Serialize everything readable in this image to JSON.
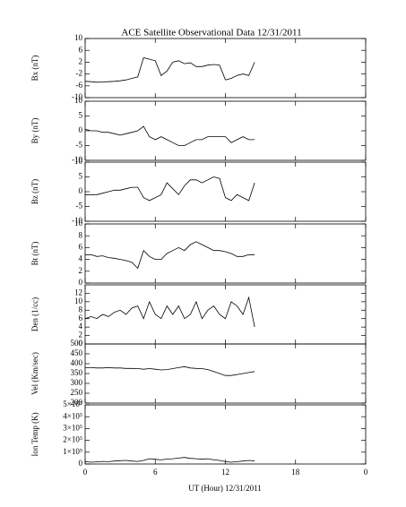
{
  "title": "ACE Satellite Observational Data   12/31/2011",
  "x_label": "UT (Hour)  12/31/2011",
  "xlim": [
    0,
    24
  ],
  "xticks": [
    0,
    6,
    12,
    18,
    {
      "value": 24,
      "label": "0"
    }
  ],
  "x": [
    0,
    0.5,
    1,
    1.5,
    2,
    2.5,
    3,
    3.5,
    4,
    4.5,
    5,
    5.5,
    6,
    6.5,
    7,
    7.5,
    8,
    8.5,
    9,
    9.5,
    10,
    10.5,
    11,
    11.5,
    12,
    12.5,
    13,
    13.5,
    14,
    14.5
  ],
  "chart_data": [
    {
      "type": "line",
      "y_label": "Bx (nT)",
      "ylim": [
        -10,
        10
      ],
      "yticks": [
        -10,
        -6,
        -2,
        2,
        6,
        10
      ],
      "values": [
        -4.5,
        -4.6,
        -4.8,
        -4.7,
        -4.6,
        -4.5,
        -4.3,
        -4.0,
        -3.5,
        -3.0,
        3.5,
        3.0,
        2.5,
        -2.5,
        -1.0,
        2.0,
        2.5,
        1.5,
        1.8,
        0.5,
        0.5,
        1.0,
        1.2,
        1.0,
        -4.0,
        -3.5,
        -2.5,
        -2.0,
        -2.5,
        2.0
      ]
    },
    {
      "type": "line",
      "y_label": "By (nT)",
      "ylim": [
        -10,
        10
      ],
      "yticks": [
        -10,
        -5,
        0,
        5,
        10
      ],
      "values": [
        0.5,
        0,
        0,
        -0.5,
        -0.5,
        -1,
        -1.5,
        -1,
        -0.5,
        0,
        1.5,
        -2,
        -3,
        -2,
        -3,
        -4,
        -5,
        -5,
        -4,
        -3,
        -3,
        -2,
        -2,
        -2,
        -2,
        -4,
        -3,
        -2,
        -3,
        -3
      ]
    },
    {
      "type": "line",
      "y_label": "Bz (nT)",
      "ylim": [
        -10,
        10
      ],
      "yticks": [
        -10,
        -5,
        0,
        5,
        10
      ],
      "values": [
        -1,
        -1,
        -1,
        -0.5,
        0,
        0.5,
        0.5,
        1,
        1.5,
        1.5,
        -2,
        -3,
        -2,
        -1,
        3,
        1,
        -1,
        2,
        4,
        4,
        3,
        4,
        5,
        4.5,
        -2,
        -3,
        -1,
        -2,
        -3,
        3
      ]
    },
    {
      "type": "line",
      "y_label": "Bt (nT)",
      "ylim": [
        0,
        10
      ],
      "yticks": [
        0,
        2,
        4,
        6,
        8,
        10
      ],
      "values": [
        4.8,
        4.8,
        4.5,
        4.6,
        4.3,
        4.2,
        4.0,
        3.8,
        3.5,
        2.5,
        5.5,
        4.5,
        4.0,
        4.0,
        5,
        5.5,
        6,
        5.5,
        6.5,
        7,
        6.5,
        6,
        5.5,
        5.5,
        5.3,
        5,
        4.5,
        4.5,
        4.8,
        4.8
      ]
    },
    {
      "type": "line",
      "y_label": "Den (1/cc)",
      "ylim": [
        0,
        14
      ],
      "yticks": [
        0,
        2,
        4,
        6,
        8,
        10,
        12
      ],
      "values": [
        6,
        6.5,
        6,
        7,
        6.5,
        7.5,
        8,
        7,
        8.5,
        9,
        6,
        10,
        7,
        6,
        9,
        7,
        9,
        6,
        7,
        10,
        6,
        8,
        9,
        7,
        6,
        10,
        9,
        7,
        11,
        4
      ]
    },
    {
      "type": "line",
      "y_label": "Vel (Km/sec)",
      "ylim": [
        200,
        500
      ],
      "yticks": [
        200,
        250,
        300,
        350,
        400,
        450,
        500
      ],
      "values": [
        380,
        380,
        378,
        378,
        380,
        378,
        378,
        376,
        376,
        375,
        372,
        375,
        372,
        368,
        370,
        375,
        380,
        385,
        378,
        376,
        375,
        370,
        360,
        350,
        340,
        340,
        345,
        350,
        355,
        360
      ]
    },
    {
      "type": "line",
      "y_label": "Ion Temp (K)",
      "ylim": [
        0,
        500000
      ],
      "yticks": [
        0,
        {
          "value": 100000,
          "label": "1×10⁵"
        },
        {
          "value": 200000,
          "label": "2×10⁵"
        },
        {
          "value": 300000,
          "label": "3×10⁵"
        },
        {
          "value": 400000,
          "label": "4×10⁵"
        },
        {
          "value": 500000,
          "label": "5×10⁵"
        }
      ],
      "values": [
        20000,
        15000,
        18000,
        22000,
        20000,
        25000,
        28000,
        30000,
        25000,
        22000,
        30000,
        45000,
        40000,
        35000,
        42000,
        45000,
        50000,
        55000,
        48000,
        45000,
        40000,
        45000,
        35000,
        30000,
        20000,
        15000,
        20000,
        25000,
        30000,
        25000
      ]
    }
  ]
}
